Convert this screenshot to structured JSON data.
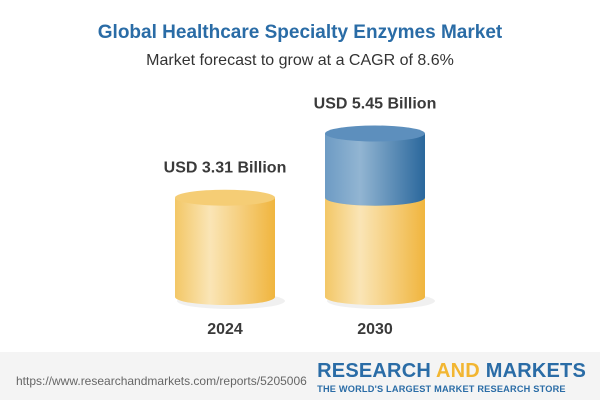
{
  "title": "Global Healthcare Specialty Enzymes Market",
  "subtitle": "Market forecast to grow at a CAGR of 8.6%",
  "chart_data": {
    "type": "bar",
    "style": "3d-cylinder",
    "categories": [
      "2024",
      "2030"
    ],
    "values": [
      3.31,
      5.45
    ],
    "data_labels": [
      "USD 3.31 Billion",
      "USD 5.45 Billion"
    ],
    "unit": "USD Billion",
    "title": "Global Healthcare Specialty Enzymes Market",
    "subtitle": "Market forecast to grow at a CAGR of 8.6%",
    "cagr": "8.6%",
    "colors": {
      "base": "#f2c45a",
      "growth": "#4a82b4"
    }
  },
  "footer": {
    "url": "https://www.researchandmarkets.com/reports/5205006",
    "brand_part1": "RESEARCH ",
    "brand_part2": "AND",
    "brand_part3": " MARKETS",
    "tagline": "THE WORLD'S LARGEST MARKET RESEARCH STORE"
  }
}
